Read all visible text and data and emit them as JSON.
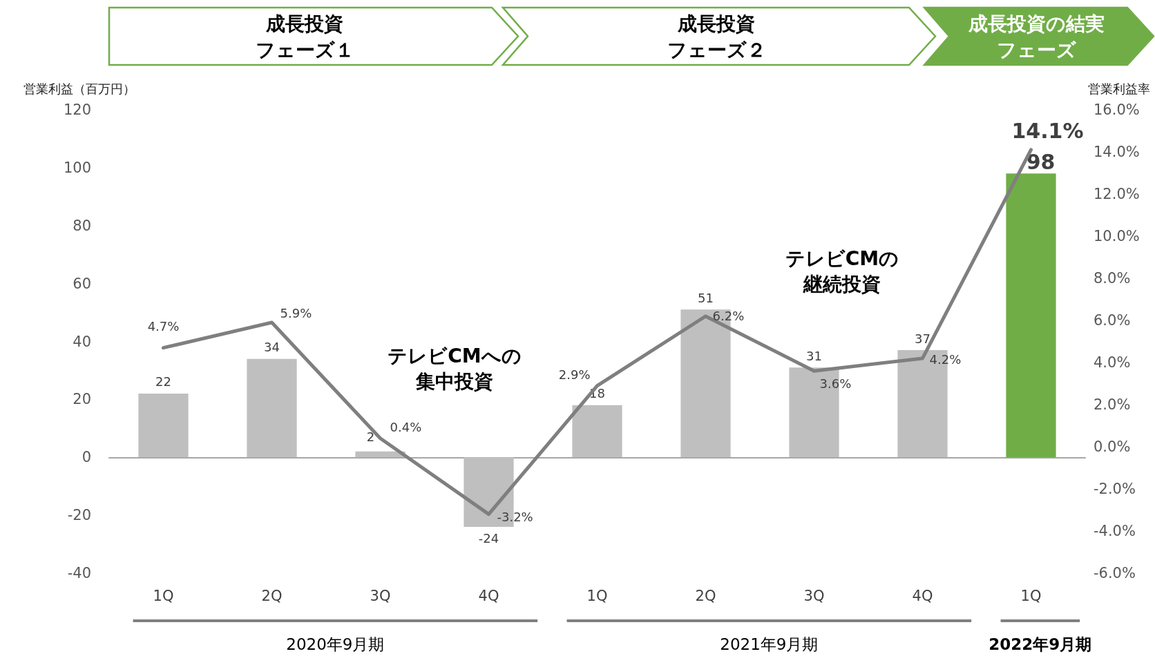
{
  "chart_data": {
    "type": "bar",
    "ylabel": "営業利益（百万円）",
    "y2label": "営業利益率",
    "categories": [
      "1Q",
      "2Q",
      "3Q",
      "4Q",
      "1Q",
      "2Q",
      "3Q",
      "4Q",
      "1Q"
    ],
    "series": [
      {
        "colors": [
          "#bfbfbf",
          "#bfbfbf",
          "#bfbfbf",
          "#bfbfbf",
          "#bfbfbf",
          "#bfbfbf",
          "#bfbfbf",
          "#bfbfbf",
          "#70ad47"
        ],
        "values": [
          22,
          34,
          2,
          -24,
          18,
          51,
          31,
          37,
          98
        ],
        "value_labels": [
          "22",
          "34",
          "2",
          "-24",
          "18",
          "51",
          "31",
          "37",
          "98"
        ]
      },
      {
        "type": "line",
        "axis": "y2",
        "color": "#7f7f7f",
        "values": [
          4.7,
          5.9,
          0.4,
          -3.2,
          2.9,
          6.2,
          3.6,
          4.2,
          14.1
        ],
        "value_labels": [
          "4.7%",
          "5.9%",
          "0.4%",
          "-3.2%",
          "2.9%",
          "6.2%",
          "3.6%",
          "4.2%",
          "14.1%"
        ]
      }
    ],
    "ylim": [
      -40,
      120
    ],
    "yticks": [
      -40,
      -20,
      0,
      20,
      40,
      60,
      80,
      100,
      120
    ],
    "y2lim": [
      -6,
      16
    ],
    "y2ticks": [
      {
        "value": -6,
        "label": "-6.0%"
      },
      {
        "value": -4,
        "label": "-4.0%"
      },
      {
        "value": -2,
        "label": "-2.0%"
      },
      {
        "value": 0,
        "label": "0.0%"
      },
      {
        "value": 2,
        "label": "2.0%"
      },
      {
        "value": 4,
        "label": "4.0%"
      },
      {
        "value": 6,
        "label": "6.0%"
      },
      {
        "value": 8,
        "label": "8.0%"
      },
      {
        "value": 10,
        "label": "10.0%"
      },
      {
        "value": 12,
        "label": "12.0%"
      },
      {
        "value": 14,
        "label": "14.0%"
      },
      {
        "value": 16,
        "label": "16.0%"
      }
    ],
    "marker": "none",
    "line_style": "solid",
    "annotations": [
      "成長投資",
      "フェーズ１",
      "成長投資",
      "フェーズ２",
      "成長投資の結実",
      "フェーズ",
      "テレビCMへの",
      "集中投資",
      "テレビCMの",
      "継続投資",
      "2020年9月期",
      "2021年9月期",
      "2022年9月期"
    ]
  }
}
